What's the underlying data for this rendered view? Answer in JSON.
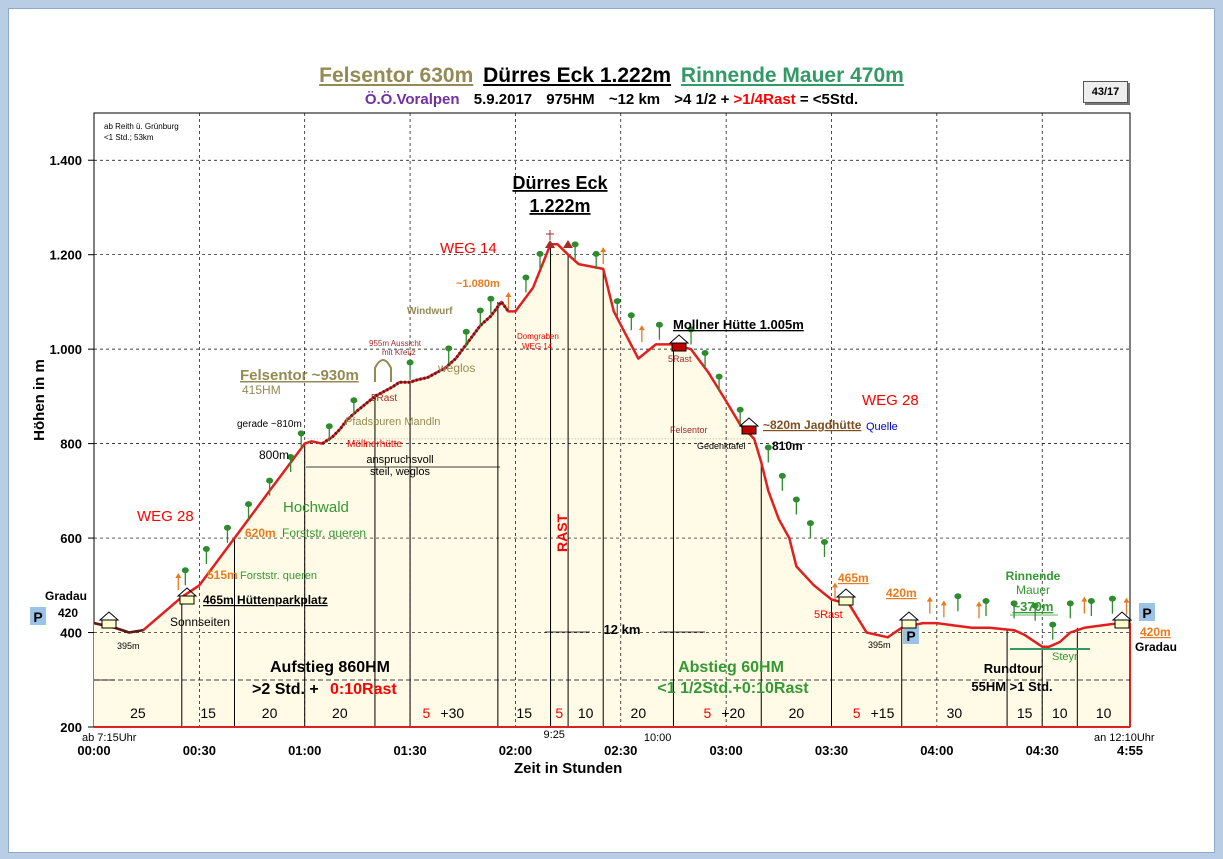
{
  "colors": {
    "route": "#e02020",
    "route_dark": "#5c1a1a",
    "fill": "#fffbe6",
    "tree": "#2e8b2e",
    "flag": "#e87b1e",
    "text_red": "#ff0000",
    "text_green": "#339933",
    "text_brown": "#948a54",
    "parking": "#9cc3e6",
    "hut": "#c00000"
  },
  "chart_data": {
    "type": "area",
    "title": [
      "Felsentor 630m",
      "Dürres Eck 1.222m",
      "Rinnende Mauer 470m"
    ],
    "subtitle": [
      "Ö.Ö.Voralpen",
      "5.9.2017",
      "975HM",
      "~12 km",
      ">4 1/2 +",
      ">1/4Rast",
      "= <5Std."
    ],
    "badge": "43/17",
    "xlabel": "Zeit in Stunden",
    "ylabel": "Höhen in m",
    "xlim_min": [
      0,
      295
    ],
    "ylim": [
      200,
      1500
    ],
    "grid": true,
    "x_ticks": [
      {
        "min": 0,
        "label": "00:00"
      },
      {
        "min": 30,
        "label": "00:30"
      },
      {
        "min": 60,
        "label": "01:00"
      },
      {
        "min": 90,
        "label": "01:30"
      },
      {
        "min": 120,
        "label": "02:00"
      },
      {
        "min": 150,
        "label": "02:30"
      },
      {
        "min": 180,
        "label": "03:00"
      },
      {
        "min": 210,
        "label": "03:30"
      },
      {
        "min": 240,
        "label": "04:00"
      },
      {
        "min": 270,
        "label": "04:30"
      },
      {
        "min": 295,
        "label": "4:55"
      }
    ],
    "y_ticks": [
      {
        "v": 200,
        "label": "200"
      },
      {
        "v": 400,
        "label": "400"
      },
      {
        "v": 600,
        "label": "600"
      },
      {
        "v": 800,
        "label": "800"
      },
      {
        "v": 1000,
        "label": "1.000"
      },
      {
        "v": 1200,
        "label": "1.200"
      },
      {
        "v": 1400,
        "label": "1.400"
      }
    ],
    "series": [
      {
        "x": [
          0,
          6,
          10,
          14,
          25,
          30,
          35,
          40,
          45,
          50,
          55,
          60,
          62,
          65,
          68,
          70,
          72,
          75,
          80,
          85,
          87,
          90,
          92,
          95,
          100,
          103,
          105,
          108,
          110,
          113,
          116,
          118,
          120,
          125,
          130,
          132,
          135,
          138,
          145,
          148,
          155,
          160,
          165,
          170,
          175,
          180,
          184,
          188,
          190,
          192,
          195,
          198,
          200,
          205,
          210,
          215,
          220,
          226,
          230,
          236,
          240,
          245,
          250,
          255,
          262,
          265,
          270,
          272,
          275,
          278,
          282,
          290,
          295
        ],
        "y": [
          420,
          410,
          400,
          405,
          475,
          500,
          550,
          600,
          650,
          700,
          750,
          800,
          805,
          800,
          815,
          830,
          850,
          870,
          900,
          920,
          930,
          930,
          935,
          940,
          960,
          980,
          1000,
          1030,
          1050,
          1070,
          1100,
          1080,
          1080,
          1130,
          1222,
          1222,
          1200,
          1180,
          1170,
          1080,
          980,
          1010,
          1010,
          1000,
          950,
          890,
          840,
          810,
          760,
          700,
          640,
          600,
          540,
          500,
          470,
          460,
          400,
          390,
          410,
          420,
          420,
          415,
          410,
          410,
          405,
          395,
          370,
          370,
          380,
          400,
          410,
          418,
          420
        ]
      }
    ],
    "vlines_min": [
      25,
      40,
      60,
      80,
      90,
      115,
      130,
      135,
      145,
      165,
      190,
      210,
      230,
      260,
      270,
      280
    ],
    "rest_marks_min": [
      130,
      135
    ],
    "row_segments": [
      {
        "from": 0,
        "to": 25,
        "label": "25",
        "color": "#000"
      },
      {
        "from": 25,
        "to": 40,
        "label": "15",
        "color": "#000"
      },
      {
        "from": 40,
        "to": 60,
        "label": "20",
        "color": "#000"
      },
      {
        "from": 60,
        "to": 80,
        "label": "20",
        "color": "#000"
      },
      {
        "from": 80,
        "to": 115,
        "label": "5",
        "label2": "+30",
        "color": "#ff0000"
      },
      {
        "from": 115,
        "to": 130,
        "label": "15",
        "color": "#000"
      },
      {
        "from": 130,
        "to": 135,
        "label": "5",
        "color": "#ff0000"
      },
      {
        "from": 135,
        "to": 145,
        "label": "10",
        "color": "#000"
      },
      {
        "from": 145,
        "to": 165,
        "label": "20",
        "color": "#000"
      },
      {
        "from": 165,
        "to": 190,
        "label": "5",
        "label2": "+20",
        "color": "#ff0000"
      },
      {
        "from": 190,
        "to": 210,
        "label": "20",
        "color": "#000"
      },
      {
        "from": 210,
        "to": 230,
        "label": "5",
        "label2": "+15",
        "color": "#ff0000"
      },
      {
        "from": 230,
        "to": 260,
        "label": "30",
        "color": "#000"
      },
      {
        "from": 260,
        "to": 270,
        "label": "15",
        "color": "#000"
      },
      {
        "from": 270,
        "to": 280,
        "label": "10",
        "color": "#000"
      },
      {
        "from": 280,
        "to": 295,
        "label": "10",
        "color": "#000"
      }
    ],
    "trees": [
      {
        "x": 26,
        "y": 500
      },
      {
        "x": 32,
        "y": 545
      },
      {
        "x": 38,
        "y": 590
      },
      {
        "x": 44,
        "y": 640
      },
      {
        "x": 50,
        "y": 690
      },
      {
        "x": 56,
        "y": 740
      },
      {
        "x": 59,
        "y": 790
      },
      {
        "x": 67,
        "y": 805
      },
      {
        "x": 74,
        "y": 860
      },
      {
        "x": 90,
        "y": 940
      },
      {
        "x": 101,
        "y": 970
      },
      {
        "x": 106,
        "y": 1005
      },
      {
        "x": 110,
        "y": 1050
      },
      {
        "x": 113,
        "y": 1075
      },
      {
        "x": 123,
        "y": 1120
      },
      {
        "x": 127,
        "y": 1170
      },
      {
        "x": 137,
        "y": 1190
      },
      {
        "x": 143,
        "y": 1170
      },
      {
        "x": 149,
        "y": 1070
      },
      {
        "x": 153,
        "y": 1040
      },
      {
        "x": 161,
        "y": 1020
      },
      {
        "x": 170,
        "y": 1010
      },
      {
        "x": 174,
        "y": 960
      },
      {
        "x": 178,
        "y": 910
      },
      {
        "x": 184,
        "y": 840
      },
      {
        "x": 192,
        "y": 760
      },
      {
        "x": 196,
        "y": 700
      },
      {
        "x": 200,
        "y": 650
      },
      {
        "x": 204,
        "y": 600
      },
      {
        "x": 208,
        "y": 560
      },
      {
        "x": 246,
        "y": 445
      },
      {
        "x": 254,
        "y": 435
      },
      {
        "x": 262,
        "y": 430
      },
      {
        "x": 268,
        "y": 425
      },
      {
        "x": 273,
        "y": 385
      },
      {
        "x": 278,
        "y": 430
      },
      {
        "x": 284,
        "y": 435
      },
      {
        "x": 290,
        "y": 440
      }
    ],
    "flags": [
      {
        "x": 24,
        "y": 490
      },
      {
        "x": 145,
        "y": 1180
      },
      {
        "x": 156,
        "y": 1015
      },
      {
        "x": 118,
        "y": 1085
      },
      {
        "x": 211,
        "y": 470
      },
      {
        "x": 238,
        "y": 440
      },
      {
        "x": 242,
        "y": 432
      },
      {
        "x": 252,
        "y": 430
      },
      {
        "x": 282,
        "y": 440
      },
      {
        "x": 294,
        "y": 438
      }
    ],
    "annotations": {
      "label_ab": "ab 7:15Uhr",
      "label_an": "an 12:10Uhr",
      "label_925": "9:25",
      "label_1000": "10:00",
      "start_info_1": "ab Reith ü. Grünburg",
      "start_info_2": "<1  Std.; 53km",
      "peak_name": "Dürres Eck",
      "peak_height": "1.222m",
      "weg14": "WEG 14",
      "weg28_left": "WEG 28",
      "weg28_right": "WEG 28",
      "hochwald": "Hochwald",
      "f620": "620m",
      "f620b": "Forststr. queren",
      "f515": "515m",
      "f515b": "Forststr. queren",
      "huettenpark": "465m Hüttenparkplatz",
      "sonnseiten": "Sonnseiten",
      "gradau_left": "Gradau",
      "h420_left": "420",
      "h395_left": "395m",
      "h800": "800m",
      "gerade": "gerade  ~810m",
      "moellnerhuette": "Möllnerhütte",
      "pfadspuren": "Pfadspuren Mandln",
      "anspruchsvoll": "anspruchsvoll",
      "steil": "steil, weglos",
      "felsentor": "Felsentor ~930m",
      "h415": "415HM",
      "rast5_1": "5Rast",
      "aussicht": "955m Aussicht",
      "kreuz": "mit Kreuz",
      "weglos": "weglos",
      "windwurf": "Windwurf",
      "h1080": "~1.080m",
      "domgraben": "Domgraben",
      "weg14_small": "WEG 14",
      "rast_vertical": "RAST",
      "km12": "12 km",
      "mollner": "Mollner Hütte 1.005m",
      "rast5_2": "5Rast",
      "felsentor_small": "Felsentor",
      "gedenktafel": "Gedenktafel",
      "jagdhuette": "~820m Jagdhütte",
      "quelle": "Quelle",
      "h810": "810m",
      "h465": "465m",
      "rast5_3": "5Rast",
      "h420_mid": "420m",
      "h395_right": "395m",
      "rinnende": "Rinnende",
      "mauer": "Mauer",
      "h370": "~370m",
      "steyr": "Steyr",
      "h420_right": "420m",
      "gradau_right": "Gradau",
      "aufstieg": "Aufstieg 860HM",
      "aufstieg2a": ">2 Std. +",
      "aufstieg2b": "0:10Rast",
      "abstieg": "Abstieg 60HM",
      "abstieg2": "<1 1/2Std.+0:10Rast",
      "rundtour": "Rundtour",
      "rundtour2": "55HM  >1  Std.",
      "parking": "P"
    }
  }
}
